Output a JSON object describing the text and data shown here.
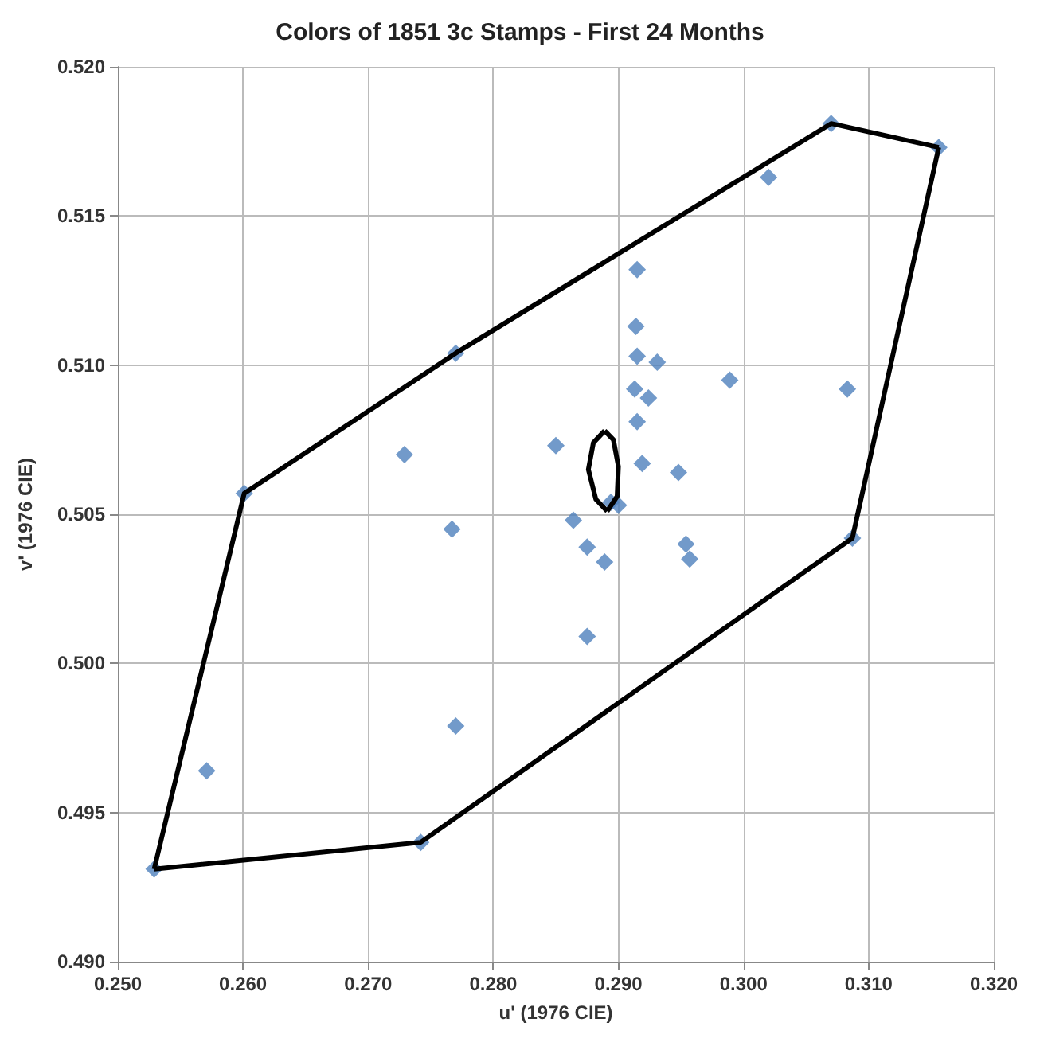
{
  "chart_data": {
    "type": "scatter",
    "title": "Colors of 1851 3c Stamps - First 24 Months",
    "xlabel": "u' (1976 CIE)",
    "ylabel": "v' (1976 CIE)",
    "xlim": [
      0.25,
      0.32
    ],
    "xticks": [
      {
        "value": 0.25,
        "label": "0.250"
      },
      {
        "value": 0.26,
        "label": "0.260"
      },
      {
        "value": 0.27,
        "label": "0.270"
      },
      {
        "value": 0.28,
        "label": "0.280"
      },
      {
        "value": 0.29,
        "label": "0.290"
      },
      {
        "value": 0.3,
        "label": "0.300"
      },
      {
        "value": 0.31,
        "label": "0.310"
      },
      {
        "value": 0.32,
        "label": "0.320"
      }
    ],
    "ylim": [
      0.49,
      0.52
    ],
    "yticks": [
      {
        "value": 0.49,
        "label": "0.490"
      },
      {
        "value": 0.495,
        "label": "0.495"
      },
      {
        "value": 0.5,
        "label": "0.500"
      },
      {
        "value": 0.505,
        "label": "0.505"
      },
      {
        "value": 0.51,
        "label": "0.510"
      },
      {
        "value": 0.515,
        "label": "0.515"
      },
      {
        "value": 0.52,
        "label": "0.520"
      }
    ],
    "grid": true,
    "marker": "diamond",
    "series": [
      {
        "color": "#4f81bd",
        "x": [
          0.307,
          0.3156,
          0.302,
          0.2915,
          0.2914,
          0.277,
          0.2915,
          0.2931,
          0.2989,
          0.2913,
          0.3083,
          0.2924,
          0.2915,
          0.285,
          0.2729,
          0.2919,
          0.2948,
          0.2601,
          0.2894,
          0.29,
          0.2864,
          0.2767,
          0.3087,
          0.2954,
          0.2875,
          0.2957,
          0.2889,
          0.2875,
          0.277,
          0.2571,
          0.2742,
          0.2529
        ],
        "values": [
          0.5181,
          0.5173,
          0.5163,
          0.5132,
          0.5113,
          0.5104,
          0.5103,
          0.5101,
          0.5095,
          0.5092,
          0.5092,
          0.5089,
          0.5081,
          0.5073,
          0.507,
          0.5067,
          0.5064,
          0.5057,
          0.5054,
          0.5053,
          0.5048,
          0.5045,
          0.5042,
          0.504,
          0.5039,
          0.5035,
          0.5034,
          0.5009,
          0.4979,
          0.4964,
          0.494,
          0.4931
        ]
      },
      {
        "type": "line",
        "color": "#000000",
        "marker": "none",
        "x": [
          0.2529,
          0.2601,
          0.277,
          0.307,
          0.3156
        ],
        "values": [
          0.4931,
          0.5057,
          0.5104,
          0.5181,
          0.5173
        ]
      },
      {
        "type": "line",
        "color": "#000000",
        "marker": "none",
        "x": [
          0.2529,
          0.2742,
          0.3087,
          0.3156
        ],
        "values": [
          0.4931,
          0.494,
          0.5042,
          0.5173
        ]
      },
      {
        "type": "line",
        "color": "#000000",
        "marker": "none",
        "x": [
          0.2889,
          0.288,
          0.2876,
          0.2882,
          0.2891
        ],
        "values": [
          0.5078,
          0.5074,
          0.5065,
          0.5055,
          0.5051
        ]
      },
      {
        "type": "line",
        "color": "#000000",
        "marker": "none",
        "x": [
          0.2889,
          0.2896,
          0.29,
          0.2899,
          0.2891
        ],
        "values": [
          0.5078,
          0.5075,
          0.5066,
          0.5056,
          0.5051
        ]
      }
    ]
  }
}
